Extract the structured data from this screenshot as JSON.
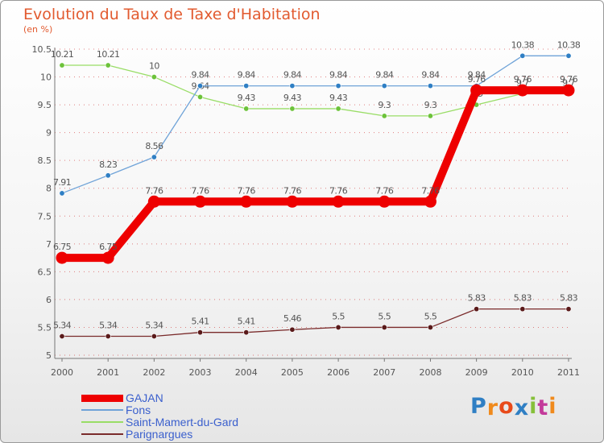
{
  "header": {
    "title": "Evolution du Taux de Taxe d'Habitation",
    "unit": "(en %)"
  },
  "colors": {
    "title": "#e25a2f",
    "axis": "#777777",
    "grid": "#cc1b1b",
    "label": "#555555",
    "legend_text": "#3a5fcd"
  },
  "chart_data": {
    "type": "line",
    "title": "Evolution du Taux de Taxe d'Habitation",
    "ylabel": "(en %)",
    "xlabel": "",
    "categories": [
      "2000",
      "2001",
      "2002",
      "2003",
      "2004",
      "2005",
      "2006",
      "2007",
      "2008",
      "2009",
      "2010",
      "2011"
    ],
    "ylim": [
      5,
      10.5
    ],
    "yticks": [
      "5",
      "5.5",
      "6",
      "6.5",
      "7",
      "7.5",
      "8",
      "8.5",
      "9",
      "9.5",
      "10",
      "10.5"
    ],
    "ytick_values": [
      5,
      5.5,
      6,
      6.5,
      7,
      7.5,
      8,
      8.5,
      9,
      9.5,
      10,
      10.5
    ],
    "legend_position": "bottom-left",
    "series": [
      {
        "name": "Parignargues",
        "color": "#7a2b2b",
        "dot": "#5a1a1a",
        "weight": "thin",
        "values": [
          5.34,
          5.34,
          5.34,
          5.41,
          5.41,
          5.46,
          5.5,
          5.5,
          5.5,
          5.83,
          5.83,
          5.83
        ],
        "labels": [
          "5.34",
          "5.34",
          "5.34",
          "5.41",
          "5.41",
          "5.46",
          "5.5",
          "5.5",
          "5.5",
          "5.83",
          "5.83",
          "5.83"
        ]
      },
      {
        "name": "Saint-Mamert-du-Gard",
        "color": "#99dd66",
        "dot": "#6cc23a",
        "weight": "thin",
        "values": [
          10.21,
          10.21,
          10,
          9.64,
          9.43,
          9.43,
          9.43,
          9.3,
          9.3,
          9.5,
          9.7,
          9.7
        ],
        "labels": [
          "10.21",
          "10.21",
          "10",
          "9.64",
          "9.43",
          "9.43",
          "9.43",
          "9.3",
          "9.3",
          "9.5",
          "9.7",
          "9.7"
        ]
      },
      {
        "name": "Fons",
        "color": "#6fa3d8",
        "dot": "#2f7fc4",
        "weight": "thin",
        "values": [
          7.91,
          8.23,
          8.56,
          9.84,
          9.84,
          9.84,
          9.84,
          9.84,
          9.84,
          9.84,
          10.38,
          10.38
        ],
        "labels": [
          "7.91",
          "8.23",
          "8.56",
          "9.84",
          "9.84",
          "9.84",
          "9.84",
          "9.84",
          "9.84",
          "9.84",
          "10.38",
          "10.38"
        ]
      },
      {
        "name": "GAJAN",
        "color": "#ee0000",
        "dot": "#ee0000",
        "weight": "thick",
        "values": [
          6.75,
          6.75,
          7.76,
          7.76,
          7.76,
          7.76,
          7.76,
          7.76,
          7.76,
          9.76,
          9.76,
          9.76
        ],
        "labels": [
          "6.75",
          "6.75",
          "7.76",
          "7.76",
          "7.76",
          "7.76",
          "7.76",
          "7.76",
          "7.76",
          "9.76",
          "9.76",
          "9.76"
        ]
      }
    ]
  },
  "legend": {
    "items": [
      {
        "name": "GAJAN",
        "color": "#ee0000",
        "weight": "thick"
      },
      {
        "name": "Fons",
        "color": "#6fa3d8",
        "weight": "thin"
      },
      {
        "name": "Saint-Mamert-du-Gard",
        "color": "#99dd66",
        "weight": "thin"
      },
      {
        "name": "Parignargues",
        "color": "#7a2b2b",
        "weight": "thin"
      }
    ]
  },
  "logo": {
    "text": "Proxiti",
    "letter_colors": [
      "#2f7fc4",
      "#f08a1c",
      "#e84a1a",
      "#2f7fc4",
      "#86c03a",
      "#c33a9a",
      "#f08a1c"
    ]
  }
}
